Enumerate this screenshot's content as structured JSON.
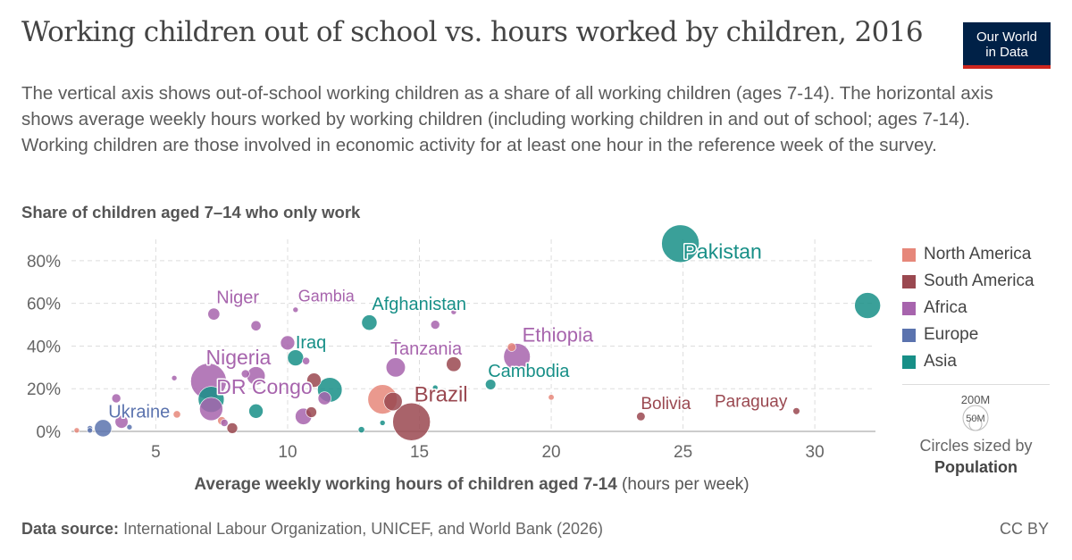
{
  "header": {
    "title": "Working children out of school vs. hours worked by children, 2016",
    "logo_line1": "Our World",
    "logo_line2": "in Data",
    "subtitle": "The vertical axis shows out-of-school working children as a share of all working children (ages 7-14). The horizontal axis shows average weekly hours worked by working children (including working children in and out of school; ages 7-14). Working children are those involved in economic activity for at least one hour in the reference week of the survey."
  },
  "footer": {
    "source_label": "Data source:",
    "source_text": "International Labour Organization, UNICEF, and World Bank (2026)",
    "license": "CC BY"
  },
  "size_legend": {
    "big_label": "200M",
    "small_label": "50M",
    "caption_line1": "Circles sized by",
    "caption_line2": "Population"
  },
  "legend": [
    {
      "name": "North America",
      "color": "#e6877a"
    },
    {
      "name": "South America",
      "color": "#9a4850"
    },
    {
      "name": "Africa",
      "color": "#a764ad"
    },
    {
      "name": "Europe",
      "color": "#5b73ae"
    },
    {
      "name": "Asia",
      "color": "#178f87"
    }
  ],
  "chart_data": {
    "type": "scatter",
    "title": "Working children out of school vs. hours worked by children, 2016",
    "ylabel": "Share of children aged 7–14 who only work",
    "xlabel": "Average weekly working hours of children aged 7-14",
    "xlabel_unit": "(hours per week)",
    "xlim": [
      1.8,
      32.3
    ],
    "ylim": [
      0,
      90
    ],
    "xticks": [
      5,
      10,
      15,
      20,
      25,
      30
    ],
    "yticks": [
      0,
      20,
      40,
      60,
      80
    ],
    "ytick_labels": [
      "0%",
      "20%",
      "40%",
      "60%",
      "80%"
    ],
    "grid": true,
    "legend_position": "right",
    "colors": {
      "North America": "#e6877a",
      "South America": "#9a4850",
      "Africa": "#a764ad",
      "Europe": "#5b73ae",
      "Asia": "#178f87"
    },
    "points": [
      {
        "label": "Pakistan",
        "region": "Asia",
        "x": 24.9,
        "y": 88,
        "pop": 210
      },
      {
        "label": "",
        "region": "Asia",
        "x": 32.0,
        "y": 59,
        "pop": 100
      },
      {
        "label": "Afghanistan",
        "region": "Asia",
        "x": 13.1,
        "y": 51,
        "pop": 35
      },
      {
        "label": "Iraq",
        "region": "Asia",
        "x": 10.3,
        "y": 34.5,
        "pop": 38
      },
      {
        "label": "",
        "region": "Asia",
        "x": 11.6,
        "y": 19.5,
        "pop": 90
      },
      {
        "label": "",
        "region": "Asia",
        "x": 7.1,
        "y": 15,
        "pop": 100
      },
      {
        "label": "",
        "region": "Asia",
        "x": 8.8,
        "y": 9.5,
        "pop": 30
      },
      {
        "label": "Cambodia",
        "region": "Asia",
        "x": 17.7,
        "y": 22,
        "pop": 16
      },
      {
        "label": "",
        "region": "Asia",
        "x": 15.6,
        "y": 20.5,
        "pop": 4
      },
      {
        "label": "",
        "region": "Asia",
        "x": 12.8,
        "y": 0.8,
        "pop": 6
      },
      {
        "label": "",
        "region": "Asia",
        "x": 13.6,
        "y": 4,
        "pop": 4
      },
      {
        "label": "Ethiopia",
        "region": "Africa",
        "x": 18.7,
        "y": 35,
        "pop": 105
      },
      {
        "label": "Nigeria",
        "region": "Africa",
        "x": 7.0,
        "y": 23.5,
        "pop": 190
      },
      {
        "label": "DR Congo",
        "region": "Africa",
        "x": 7.1,
        "y": 10.5,
        "pop": 80
      },
      {
        "label": "Tanzania",
        "region": "Africa",
        "x": 14.1,
        "y": 30,
        "pop": 55
      },
      {
        "label": "Niger",
        "region": "Africa",
        "x": 7.2,
        "y": 55,
        "pop": 21
      },
      {
        "label": "Gambia",
        "region": "Africa",
        "x": 10.3,
        "y": 57,
        "pop": 2
      },
      {
        "label": "",
        "region": "Africa",
        "x": 8.8,
        "y": 49.5,
        "pop": 15
      },
      {
        "label": "",
        "region": "Africa",
        "x": 10.0,
        "y": 41.5,
        "pop": 30
      },
      {
        "label": "",
        "region": "Africa",
        "x": 15.6,
        "y": 50,
        "pop": 12
      },
      {
        "label": "",
        "region": "Africa",
        "x": 8.8,
        "y": 26,
        "pop": 50
      },
      {
        "label": "",
        "region": "Africa",
        "x": 8.4,
        "y": 27,
        "pop": 10
      },
      {
        "label": "",
        "region": "Africa",
        "x": 10.7,
        "y": 33,
        "pop": 8
      },
      {
        "label": "",
        "region": "Africa",
        "x": 11.4,
        "y": 15.5,
        "pop": 25
      },
      {
        "label": "",
        "region": "Africa",
        "x": 10.6,
        "y": 7,
        "pop": 40
      },
      {
        "label": "",
        "region": "Africa",
        "x": 5.7,
        "y": 25,
        "pop": 3
      },
      {
        "label": "",
        "region": "Africa",
        "x": 3.5,
        "y": 15.5,
        "pop": 12
      },
      {
        "label": "",
        "region": "Africa",
        "x": 3.7,
        "y": 4.5,
        "pop": 25
      },
      {
        "label": "",
        "region": "Africa",
        "x": 7.6,
        "y": 4,
        "pop": 8
      },
      {
        "label": "",
        "region": "Africa",
        "x": 14.1,
        "y": 42,
        "pop": 3
      },
      {
        "label": "",
        "region": "Africa",
        "x": 16.3,
        "y": 56,
        "pop": 3
      },
      {
        "label": "Brazil",
        "region": "South America",
        "x": 14.7,
        "y": 4.5,
        "pop": 210
      },
      {
        "label": "Bolivia",
        "region": "South America",
        "x": 23.4,
        "y": 7,
        "pop": 11
      },
      {
        "label": "Paraguay",
        "region": "South America",
        "x": 29.3,
        "y": 9.5,
        "pop": 7
      },
      {
        "label": "",
        "region": "South America",
        "x": 16.3,
        "y": 31.5,
        "pop": 32
      },
      {
        "label": "",
        "region": "South America",
        "x": 14.0,
        "y": 14,
        "pop": 50
      },
      {
        "label": "",
        "region": "South America",
        "x": 11.0,
        "y": 24,
        "pop": 30
      },
      {
        "label": "",
        "region": "South America",
        "x": 10.9,
        "y": 9,
        "pop": 17
      },
      {
        "label": "",
        "region": "South America",
        "x": 7.9,
        "y": 1.5,
        "pop": 17
      },
      {
        "label": "",
        "region": "North America",
        "x": 13.6,
        "y": 15,
        "pop": 128
      },
      {
        "label": "",
        "region": "North America",
        "x": 18.5,
        "y": 39.5,
        "pop": 11
      },
      {
        "label": "",
        "region": "North America",
        "x": 20.0,
        "y": 16,
        "pop": 5
      },
      {
        "label": "",
        "region": "North America",
        "x": 5.8,
        "y": 8,
        "pop": 8
      },
      {
        "label": "",
        "region": "North America",
        "x": 7.5,
        "y": 5,
        "pop": 10
      },
      {
        "label": "",
        "region": "North America",
        "x": 2.0,
        "y": 0.5,
        "pop": 4
      },
      {
        "label": "Ukraine",
        "region": "Europe",
        "x": 3.0,
        "y": 1.5,
        "pop": 44
      },
      {
        "label": "",
        "region": "Europe",
        "x": 2.5,
        "y": 1.5,
        "pop": 4
      },
      {
        "label": "",
        "region": "Europe",
        "x": 2.5,
        "y": 0.5,
        "pop": 2
      },
      {
        "label": "",
        "region": "Europe",
        "x": 4.0,
        "y": 2,
        "pop": 3
      }
    ],
    "labels": [
      {
        "text": "Pakistan",
        "region": "Asia",
        "x": 25.0,
        "y": 81,
        "size": 23
      },
      {
        "text": "Afghanistan",
        "region": "Asia",
        "x": 13.2,
        "y": 57,
        "size": 20
      },
      {
        "text": "Iraq",
        "region": "Asia",
        "x": 10.3,
        "y": 39,
        "size": 20
      },
      {
        "text": "Cambodia",
        "region": "Asia",
        "x": 17.6,
        "y": 25.5,
        "size": 20
      },
      {
        "text": "Ethiopia",
        "region": "Africa",
        "x": 18.9,
        "y": 42,
        "size": 22
      },
      {
        "text": "Nigeria",
        "region": "Africa",
        "x": 6.9,
        "y": 31.5,
        "size": 23
      },
      {
        "text": "DR Congo",
        "region": "Africa",
        "x": 7.3,
        "y": 17.5,
        "size": 23
      },
      {
        "text": "Tanzania",
        "region": "Africa",
        "x": 13.9,
        "y": 36,
        "size": 20
      },
      {
        "text": "Niger",
        "region": "Africa",
        "x": 7.3,
        "y": 60,
        "size": 20
      },
      {
        "text": "Gambia",
        "region": "Africa",
        "x": 10.4,
        "y": 61,
        "size": 18
      },
      {
        "text": "Brazil",
        "region": "South America",
        "x": 14.8,
        "y": 14,
        "size": 24
      },
      {
        "text": "Bolivia",
        "region": "South America",
        "x": 23.4,
        "y": 10.5,
        "size": 19
      },
      {
        "text": "Paraguay",
        "region": "South America",
        "x": 26.2,
        "y": 11.5,
        "size": 19
      },
      {
        "text": "Ukraine",
        "region": "Europe",
        "x": 3.2,
        "y": 6.5,
        "size": 20
      }
    ]
  }
}
